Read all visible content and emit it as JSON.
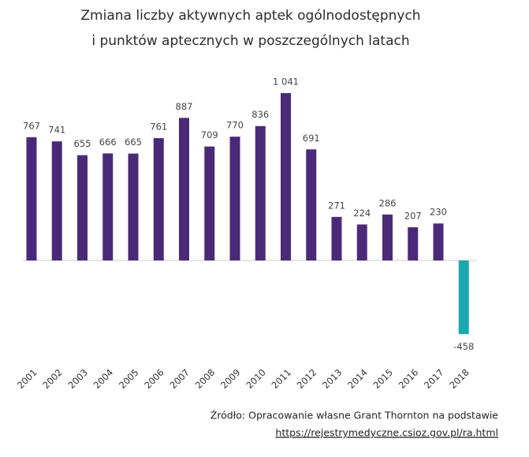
{
  "chart_data": {
    "type": "bar",
    "title": [
      "Zmiana liczby aktywnych aptek ogólnodostępnych",
      "i punktów aptecznych w poszczególnych latach"
    ],
    "categories": [
      "2001",
      "2002",
      "2003",
      "2004",
      "2005",
      "2006",
      "2007",
      "2008",
      "2009",
      "2010",
      "2011",
      "2012",
      "2013",
      "2014",
      "2015",
      "2016",
      "2017",
      "2018"
    ],
    "values": [
      767,
      741,
      655,
      666,
      665,
      761,
      887,
      709,
      770,
      836,
      1041,
      691,
      271,
      224,
      286,
      207,
      230,
      -458
    ],
    "value_labels": [
      "767",
      "741",
      "655",
      "666",
      "665",
      "761",
      "887",
      "709",
      "770",
      "836",
      "1 041",
      "691",
      "271",
      "224",
      "286",
      "207",
      "230",
      "-458"
    ],
    "colors": [
      "#4a2a78",
      "#4a2a78",
      "#4a2a78",
      "#4a2a78",
      "#4a2a78",
      "#4a2a78",
      "#4a2a78",
      "#4a2a78",
      "#4a2a78",
      "#4a2a78",
      "#4a2a78",
      "#4a2a78",
      "#4a2a78",
      "#4a2a78",
      "#4a2a78",
      "#4a2a78",
      "#4a2a78",
      "#1aa8b0"
    ],
    "source": [
      "Źródło: Opracowanie własne Grant Thornton na podstawie",
      "https://rejestrymedyczne.csioz.gov.pl/ra.html"
    ]
  }
}
